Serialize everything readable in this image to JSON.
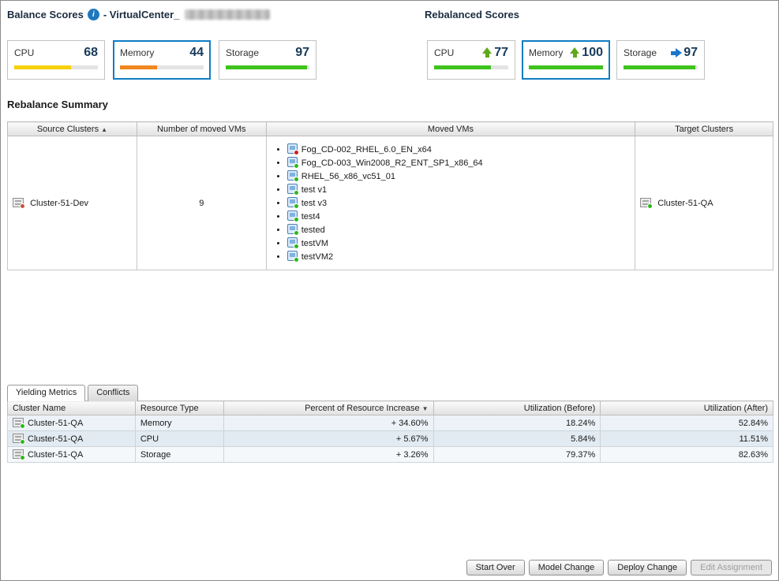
{
  "icons": {
    "info": "i",
    "sort_asc": "▲",
    "sort_desc": "▼"
  },
  "header": {
    "balance_title": "Balance Scores",
    "title_separator": "- VirtualCenter_",
    "rebalanced_title": "Rebalanced Scores"
  },
  "balance_scores": [
    {
      "label": "CPU",
      "value": "68",
      "bar_color": "#f8d10a",
      "bar_css": "width:68%;background:#f8d10a"
    },
    {
      "label": "Memory",
      "value": "44",
      "bar_color": "#f0871f",
      "bar_css": "width:44%;background:#f0871f",
      "selected": true
    },
    {
      "label": "Storage",
      "value": "97",
      "bar_color": "#3fc31d",
      "bar_css": "width:97%;background:#3fc31d"
    }
  ],
  "rebalanced_scores": [
    {
      "label": "CPU",
      "value": "77",
      "arrow": "up",
      "arrow_color": "#61a81c",
      "arrow_css": "color:#61a81c",
      "bar_css": "width:77%;background:#3fc31d"
    },
    {
      "label": "Memory",
      "value": "100",
      "arrow": "up",
      "arrow_color": "#61a81c",
      "arrow_css": "color:#61a81c",
      "bar_css": "width:100%;background:#3fc31d",
      "selected": true
    },
    {
      "label": "Storage",
      "value": "97",
      "arrow": "right",
      "arrow_color": "#1b76c8",
      "arrow_css": "color:#1b76c8",
      "bar_css": "width:97%;background:#3fc31d"
    }
  ],
  "summary": {
    "title": "Rebalance Summary",
    "columns": [
      "Source Clusters",
      "Number of moved VMs",
      "Moved VMs",
      "Target Clusters"
    ],
    "row": {
      "source_cluster": "Cluster-51-Dev",
      "source_dot_css": "background:#c4543a",
      "moved_count": "9",
      "vms": [
        {
          "name": "Fog_CD-002_RHEL_6.0_EN_x64",
          "status": "red",
          "dot_css": "background:#cf1d1d"
        },
        {
          "name": "Fog_CD-003_Win2008_R2_ENT_SP1_x86_64",
          "status": "green",
          "dot_css": "background:#2eb71c"
        },
        {
          "name": "RHEL_56_x86_vc51_01",
          "status": "green",
          "dot_css": "background:#2eb71c"
        },
        {
          "name": "test v1",
          "status": "green",
          "dot_css": "background:#2eb71c"
        },
        {
          "name": "test v3",
          "status": "green",
          "dot_css": "background:#2eb71c"
        },
        {
          "name": "test4",
          "status": "green",
          "dot_css": "background:#2eb71c"
        },
        {
          "name": "tested",
          "status": "green",
          "dot_css": "background:#2eb71c"
        },
        {
          "name": "testVM",
          "status": "green",
          "dot_css": "background:#2eb71c"
        },
        {
          "name": "testVM2",
          "status": "green",
          "dot_css": "background:#2eb71c"
        }
      ],
      "target_cluster": "Cluster-51-QA",
      "target_dot_css": "background:#2eb71c"
    }
  },
  "tabs": [
    {
      "label": "Yielding Metrics",
      "active": true
    },
    {
      "label": "Conflicts",
      "active": false
    }
  ],
  "metrics": {
    "columns": [
      "Cluster Name",
      "Resource Type",
      "Percent of Resource Increase",
      "Utilization (Before)",
      "Utilization (After)"
    ],
    "rows": [
      {
        "cluster": "Cluster-51-QA",
        "dot_css": "background:#2eb71c",
        "resource": "Memory",
        "increase": "+ 34.60%",
        "before": "18.24%",
        "after": "52.84%"
      },
      {
        "cluster": "Cluster-51-QA",
        "dot_css": "background:#2eb71c",
        "resource": "CPU",
        "increase": "+ 5.67%",
        "before": "5.84%",
        "after": "11.51%"
      },
      {
        "cluster": "Cluster-51-QA",
        "dot_css": "background:#2eb71c",
        "resource": "Storage",
        "increase": "+ 3.26%",
        "before": "79.37%",
        "after": "82.63%"
      }
    ]
  },
  "footer": {
    "buttons": [
      {
        "label": "Start Over",
        "enabled": true
      },
      {
        "label": "Model Change",
        "enabled": true
      },
      {
        "label": "Deploy Change",
        "enabled": true
      },
      {
        "label": "Edit Assignment",
        "enabled": false
      }
    ]
  }
}
